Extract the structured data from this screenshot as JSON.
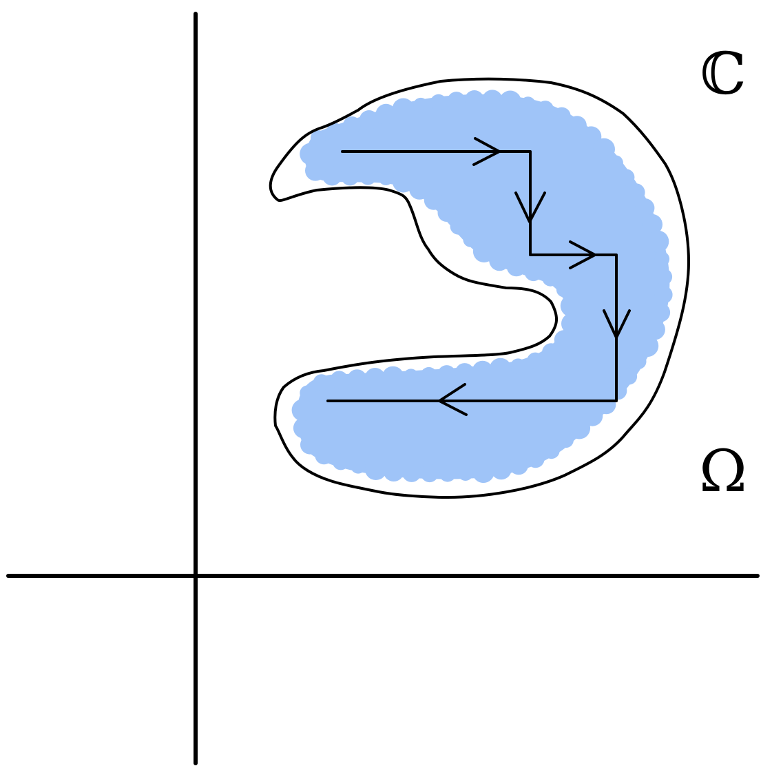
{
  "labels": {
    "complex_plane_symbol": "ℂ",
    "region_symbol": "Ω"
  },
  "colors": {
    "region_outline": "#000000",
    "shaded_set": "#9FC4F8",
    "axes": "#000000",
    "path": "#000000"
  },
  "icons": {
    "path_arrowheads": "open-chevron-arrow"
  }
}
